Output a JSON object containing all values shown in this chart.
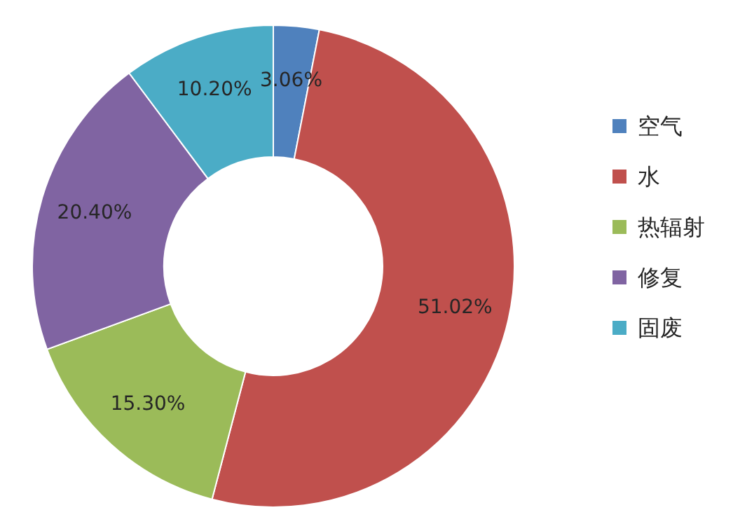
{
  "chart_data": {
    "type": "donut",
    "categories": [
      "空气",
      "水",
      "热辐射",
      "修复",
      "固废"
    ],
    "values": [
      3.06,
      51.02,
      15.3,
      20.4,
      10.2
    ],
    "colors": [
      "#4f81bd",
      "#c0504d",
      "#9bbb59",
      "#8064a2",
      "#4bacc6"
    ],
    "value_labels": [
      "3.06%",
      "51.02%",
      "15.30%",
      "20.40%",
      "10.20%"
    ],
    "legend": "right"
  }
}
